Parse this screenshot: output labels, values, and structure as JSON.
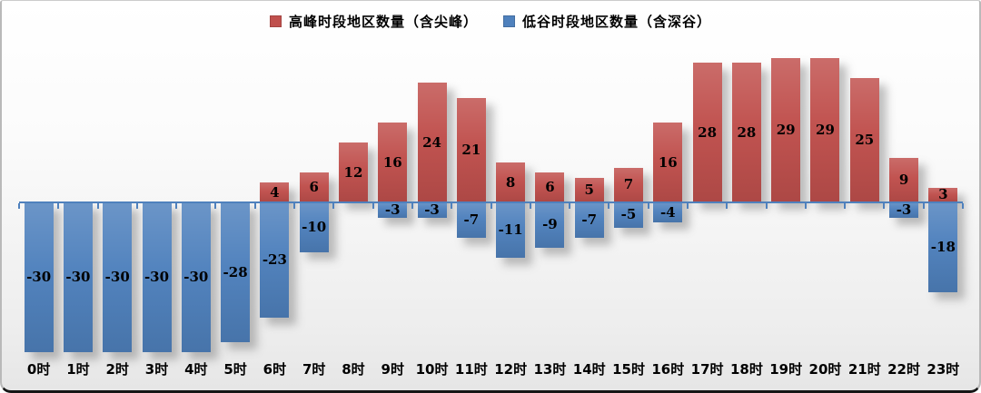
{
  "legend": {
    "items": [
      {
        "label": "高峰时段地区数量（含尖峰）",
        "color": "#c0504d"
      },
      {
        "label": "低谷时段地区数量（含深谷）",
        "color": "#4f81bd"
      }
    ]
  },
  "chart_data": {
    "type": "bar",
    "title": "",
    "xlabel": "",
    "ylabel": "",
    "categories": [
      "0时",
      "1时",
      "2时",
      "3时",
      "4时",
      "5时",
      "6时",
      "7时",
      "8时",
      "9时",
      "10时",
      "11时",
      "12时",
      "13时",
      "14时",
      "15时",
      "16时",
      "17时",
      "18时",
      "19时",
      "20时",
      "21时",
      "22时",
      "23时"
    ],
    "series": [
      {
        "name": "高峰时段地区数量（含尖峰）",
        "color": "#c0504d",
        "values": [
          null,
          null,
          null,
          null,
          null,
          null,
          4,
          6,
          12,
          16,
          24,
          21,
          8,
          6,
          5,
          7,
          16,
          28,
          28,
          29,
          29,
          25,
          9,
          3
        ]
      },
      {
        "name": "低谷时段地区数量（含深谷）",
        "color": "#4f81bd",
        "values": [
          -30,
          -30,
          -30,
          -30,
          -30,
          -28,
          -23,
          -10,
          null,
          -3,
          -3,
          -7,
          -11,
          -9,
          -7,
          -5,
          -4,
          null,
          null,
          null,
          null,
          null,
          -3,
          -18
        ]
      }
    ],
    "ylim": [
      -30,
      29
    ],
    "grid": false,
    "legend_position": "top-center",
    "data_labels": "centered-inside-bars",
    "axis_color": "#4f81bd"
  }
}
